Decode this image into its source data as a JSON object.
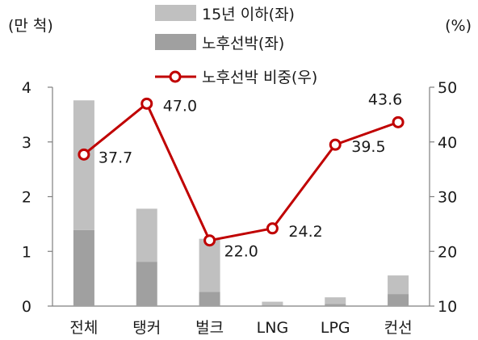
{
  "chart_data": {
    "type": "bar",
    "categories": [
      "전체",
      "탱커",
      "벌크",
      "LNG",
      "LPG",
      "컨선"
    ],
    "left_unit": "(만 척)",
    "right_unit": "(%)",
    "left_ticks": [
      "0",
      "1",
      "2",
      "3",
      "4"
    ],
    "right_ticks": [
      "10",
      "20",
      "30",
      "40",
      "50"
    ],
    "ylim_left": [
      0,
      4
    ],
    "ylim_right": [
      10,
      50
    ],
    "grid": false,
    "legend_position": "top-center",
    "series": [
      {
        "name": "15년 이하(좌)",
        "kind": "stacked-bar",
        "axis": "left",
        "color": "#c0c0c0",
        "values": [
          2.37,
          0.97,
          0.97,
          0.06,
          0.12,
          0.34
        ]
      },
      {
        "name": "노후선박(좌)",
        "kind": "stacked-bar",
        "axis": "left",
        "color": "#a0a0a0",
        "values": [
          1.39,
          0.81,
          0.26,
          0.02,
          0.04,
          0.22
        ]
      },
      {
        "name": "노후선박 비중(우)",
        "kind": "line",
        "axis": "right",
        "color": "#c00000",
        "values": [
          37.7,
          47.0,
          22.0,
          24.2,
          39.5,
          43.6
        ],
        "labels": [
          "37.7",
          "47.0",
          "22.0",
          "24.2",
          "39.5",
          "43.6"
        ]
      }
    ]
  }
}
